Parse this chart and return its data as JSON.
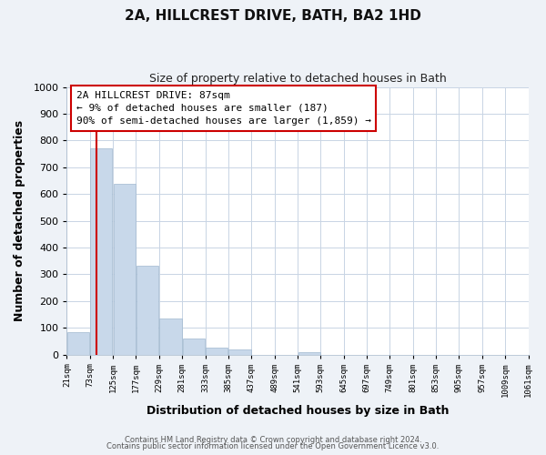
{
  "title": "2A, HILLCREST DRIVE, BATH, BA2 1HD",
  "subtitle": "Size of property relative to detached houses in Bath",
  "xlabel": "Distribution of detached houses by size in Bath",
  "ylabel": "Number of detached properties",
  "bar_color": "#c8d8ea",
  "bar_edge_color": "#a0b8d0",
  "property_line_color": "#cc0000",
  "property_value": 87,
  "bin_edges": [
    21,
    73,
    125,
    177,
    229,
    281,
    333,
    385,
    437,
    489,
    541,
    593,
    645,
    697,
    749,
    801,
    853,
    905,
    957,
    1009,
    1061
  ],
  "bar_heights": [
    85,
    770,
    638,
    333,
    135,
    60,
    25,
    18,
    0,
    0,
    10,
    0,
    0,
    0,
    0,
    0,
    0,
    0,
    0,
    0
  ],
  "tick_labels": [
    "21sqm",
    "73sqm",
    "125sqm",
    "177sqm",
    "229sqm",
    "281sqm",
    "333sqm",
    "385sqm",
    "437sqm",
    "489sqm",
    "541sqm",
    "593sqm",
    "645sqm",
    "697sqm",
    "749sqm",
    "801sqm",
    "853sqm",
    "905sqm",
    "957sqm",
    "1009sqm",
    "1061sqm"
  ],
  "ylim": [
    0,
    1000
  ],
  "yticks": [
    0,
    100,
    200,
    300,
    400,
    500,
    600,
    700,
    800,
    900,
    1000
  ],
  "annotation_title": "2A HILLCREST DRIVE: 87sqm",
  "annotation_line1": "← 9% of detached houses are smaller (187)",
  "annotation_line2": "90% of semi-detached houses are larger (1,859) →",
  "annotation_box_color": "#ffffff",
  "annotation_box_edge": "#cc0000",
  "footer1": "Contains HM Land Registry data © Crown copyright and database right 2024.",
  "footer2": "Contains public sector information licensed under the Open Government Licence v3.0.",
  "background_color": "#eef2f7",
  "plot_bg_color": "#ffffff",
  "grid_color": "#c8d4e4"
}
